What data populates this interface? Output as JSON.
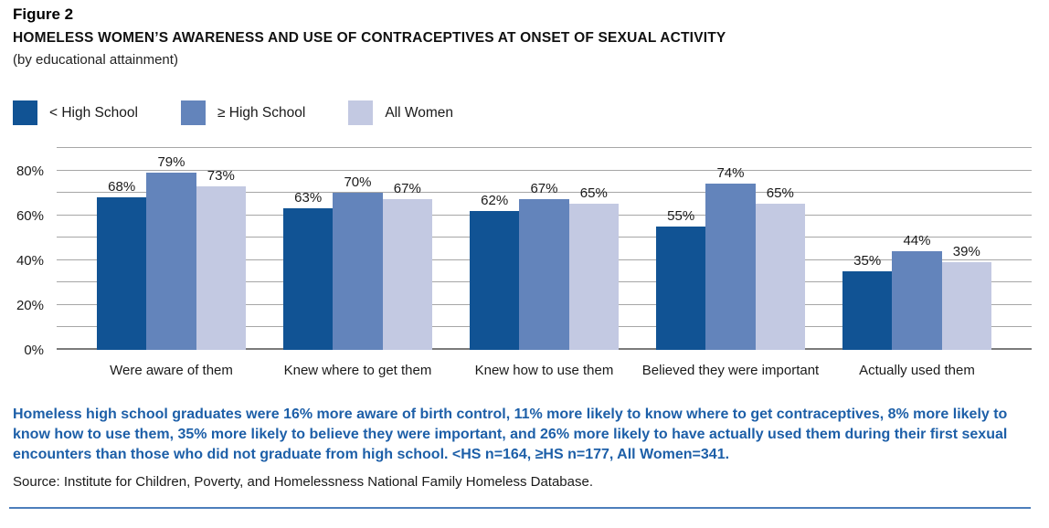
{
  "figure": {
    "label": "Figure 2",
    "title": "HOMELESS WOMEN’S AWARENESS AND USE OF CONTRACEPTIVES AT ONSET OF SEXUAL ACTIVITY",
    "subtitle": "(by educational attainment)"
  },
  "note": "Homeless high school graduates were 16% more aware of birth control, 11% more likely to know where to get contraceptives, 8% more likely to know how to use them, 35% more likely to believe they were important, and 26% more likely to have actually used them during their first sexual encounters than those who did not graduate from high school. <HS n=164, ≥HS n=177, All Women=341.",
  "source": "Source: Institute for Children, Poverty, and Homelessness National Family Homeless Database.",
  "colors": {
    "bar_lt_high_school": "#115394",
    "bar_ge_high_school": "#6384BB",
    "bar_all_women": "#C3C9E2",
    "note_text": "#1D5FA8",
    "bottom_rule": "#4C7EBB",
    "gridline": "#A6A6A6",
    "baseline": "#7A7A7A"
  },
  "chart_data": {
    "type": "bar",
    "title": "HOMELESS WOMEN’S AWARENESS AND USE OF CONTRACEPTIVES AT ONSET OF SEXUAL ACTIVITY (by educational attainment)",
    "categories": [
      "Were aware of them",
      "Knew where to get them",
      "Knew how to use them",
      "Believed they were important",
      "Actually used them"
    ],
    "series": [
      {
        "name": "< High School",
        "color": "#115394",
        "values": [
          68,
          63,
          62,
          55,
          35
        ]
      },
      {
        "name": "≥ High School",
        "color": "#6384BB",
        "values": [
          79,
          70,
          67,
          74,
          44
        ]
      },
      {
        "name": "All Women",
        "color": "#C3C9E2",
        "values": [
          73,
          67,
          65,
          65,
          39
        ]
      }
    ],
    "xlabel": "",
    "ylabel": "",
    "ylim": [
      0,
      90
    ],
    "gridline_step": 10,
    "grid": true,
    "legend_position": "top-left",
    "value_suffix": "%",
    "yticks": [
      {
        "v": 0,
        "label": "0%"
      },
      {
        "v": 20,
        "label": "20%"
      },
      {
        "v": 40,
        "label": "40%"
      },
      {
        "v": 60,
        "label": "60%"
      },
      {
        "v": 80,
        "label": "80%"
      }
    ]
  }
}
